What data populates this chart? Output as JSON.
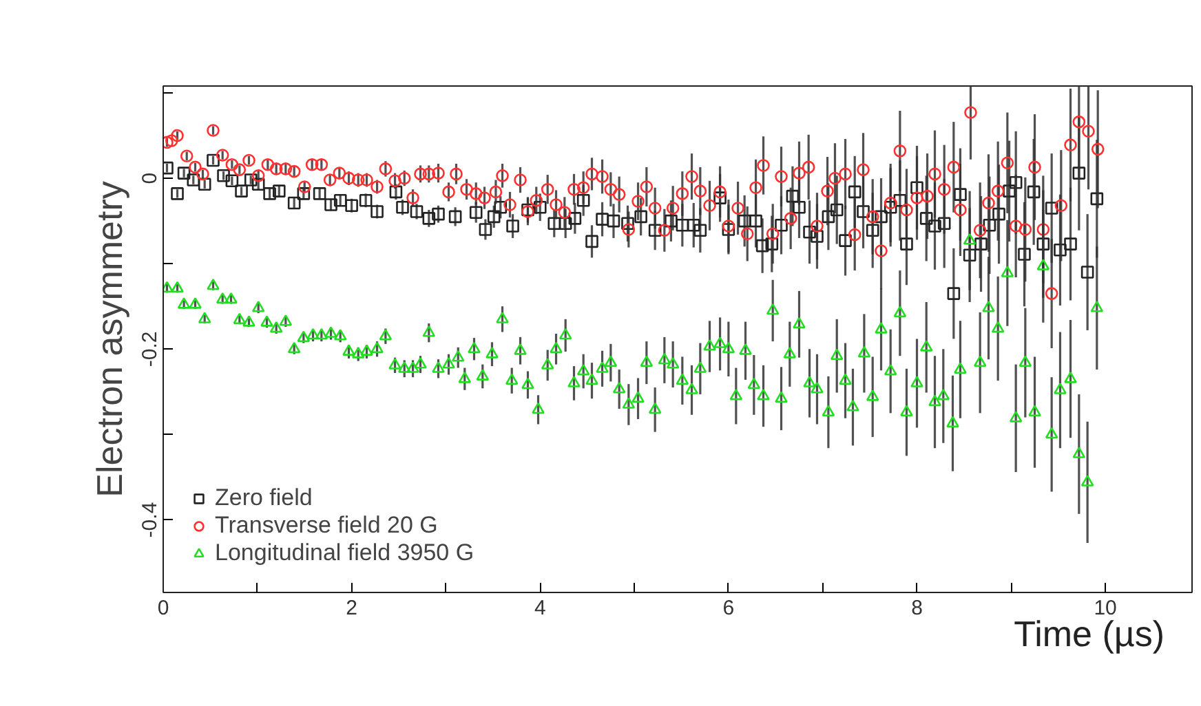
{
  "chart_data": {
    "type": "scatter",
    "xlabel": "Time (µs)",
    "ylabel": "Electron asymmetry",
    "xlim": [
      0,
      10.92
    ],
    "ylim": [
      -0.485,
      0.108
    ],
    "xticks": [
      0,
      {
        "value": 1,
        "label": null
      },
      2,
      {
        "value": 3,
        "label": null
      },
      4,
      {
        "value": 5,
        "label": null
      },
      6,
      {
        "value": 7,
        "label": null
      },
      8,
      {
        "value": 9,
        "label": null
      },
      10
    ],
    "yticks": [
      -0.4,
      {
        "value": -0.3,
        "label": null
      },
      -0.2,
      {
        "value": -0.1,
        "label": null
      },
      0,
      {
        "value": 0.1,
        "label": null
      }
    ],
    "grid": false,
    "legend": "bottom left",
    "series": [
      {
        "name": "Zero field",
        "color": "#222222",
        "marker": "square",
        "x": [
          0.04,
          0.15,
          0.22,
          0.32,
          0.44,
          0.53,
          0.64,
          0.73,
          0.83,
          0.93,
          1.01,
          1.13,
          1.23,
          1.39,
          1.49,
          1.66,
          1.78,
          1.88,
          2.0,
          2.15,
          2.27,
          2.47,
          2.54,
          2.69,
          2.82,
          2.92,
          3.1,
          3.32,
          3.42,
          3.51,
          3.58,
          3.71,
          3.87,
          4.0,
          4.15,
          4.27,
          4.37,
          4.46,
          4.55,
          4.66,
          4.78,
          4.93,
          5.07,
          5.22,
          5.39,
          5.51,
          5.63,
          5.7,
          5.91,
          6.0,
          6.17,
          6.29,
          6.36,
          6.46,
          6.56,
          6.68,
          6.75,
          6.86,
          6.94,
          7.06,
          7.15,
          7.24,
          7.34,
          7.43,
          7.53,
          7.62,
          7.72,
          7.82,
          7.89,
          8.0,
          8.1,
          8.19,
          8.29,
          8.39,
          8.46,
          8.56,
          8.68,
          8.77,
          8.87,
          8.98,
          9.05,
          9.14,
          9.24,
          9.34,
          9.43,
          9.52,
          9.63,
          9.72,
          9.81,
          9.91
        ],
        "values": [
          0.012,
          -0.018,
          0.006,
          -0.002,
          -0.007,
          0.021,
          0.003,
          -0.003,
          -0.015,
          -0.002,
          -0.007,
          -0.018,
          -0.015,
          -0.029,
          -0.018,
          -0.018,
          -0.031,
          -0.026,
          -0.032,
          -0.026,
          -0.039,
          -0.016,
          -0.034,
          -0.039,
          -0.047,
          -0.042,
          -0.045,
          -0.04,
          -0.06,
          -0.045,
          -0.034,
          -0.056,
          -0.037,
          -0.034,
          -0.053,
          -0.053,
          -0.047,
          -0.026,
          -0.074,
          -0.048,
          -0.05,
          -0.053,
          -0.045,
          -0.061,
          -0.05,
          -0.055,
          -0.055,
          -0.061,
          -0.023,
          -0.06,
          -0.05,
          -0.05,
          -0.079,
          -0.077,
          -0.055,
          -0.021,
          -0.034,
          -0.063,
          -0.068,
          -0.045,
          -0.037,
          -0.073,
          -0.016,
          -0.039,
          -0.061,
          -0.045,
          -0.034,
          -0.026,
          -0.077,
          -0.011,
          -0.047,
          -0.056,
          -0.053,
          -0.135,
          -0.019,
          -0.09,
          -0.077,
          -0.055,
          -0.042,
          -0.015,
          -0.005,
          -0.089,
          -0.016,
          -0.077,
          -0.035,
          -0.084,
          -0.077,
          0.006,
          -0.11,
          -0.024
        ],
        "errors": [
          0.005,
          0.005,
          0.005,
          0.005,
          0.005,
          0.005,
          0.005,
          0.005,
          0.005,
          0.005,
          0.006,
          0.006,
          0.006,
          0.006,
          0.006,
          0.007,
          0.007,
          0.007,
          0.008,
          0.008,
          0.008,
          0.009,
          0.009,
          0.009,
          0.01,
          0.01,
          0.011,
          0.012,
          0.012,
          0.013,
          0.013,
          0.014,
          0.015,
          0.016,
          0.016,
          0.017,
          0.018,
          0.018,
          0.019,
          0.02,
          0.02,
          0.021,
          0.022,
          0.023,
          0.024,
          0.025,
          0.026,
          0.026,
          0.028,
          0.029,
          0.03,
          0.031,
          0.032,
          0.033,
          0.034,
          0.035,
          0.036,
          0.037,
          0.038,
          0.039,
          0.04,
          0.041,
          0.042,
          0.043,
          0.044,
          0.045,
          0.046,
          0.047,
          0.048,
          0.049,
          0.05,
          0.051,
          0.052,
          0.053,
          0.054,
          0.055,
          0.056,
          0.057,
          0.058,
          0.059,
          0.06,
          0.061,
          0.062,
          0.063,
          0.064,
          0.065,
          0.066,
          0.067,
          0.068,
          0.069
        ]
      },
      {
        "name": "Transverse field 20 G",
        "color": "#ff3030",
        "marker": "circle",
        "x": [
          0.04,
          0.09,
          0.15,
          0.25,
          0.34,
          0.42,
          0.53,
          0.63,
          0.73,
          0.81,
          0.91,
          1.01,
          1.11,
          1.2,
          1.3,
          1.39,
          1.5,
          1.58,
          1.68,
          1.77,
          1.87,
          1.97,
          2.07,
          2.16,
          2.27,
          2.36,
          2.46,
          2.56,
          2.65,
          2.73,
          2.82,
          2.92,
          3.03,
          3.11,
          3.22,
          3.32,
          3.41,
          3.53,
          3.6,
          3.68,
          3.79,
          3.87,
          3.96,
          4.08,
          4.17,
          4.26,
          4.36,
          4.46,
          4.55,
          4.66,
          4.75,
          4.84,
          4.94,
          5.04,
          5.13,
          5.22,
          5.32,
          5.41,
          5.51,
          5.61,
          5.7,
          5.8,
          5.91,
          6.0,
          6.1,
          6.2,
          6.29,
          6.37,
          6.47,
          6.56,
          6.66,
          6.75,
          6.85,
          6.94,
          7.05,
          7.13,
          7.24,
          7.34,
          7.43,
          7.53,
          7.62,
          7.72,
          7.82,
          7.89,
          8.0,
          8.11,
          8.19,
          8.29,
          8.39,
          8.46,
          8.57,
          8.67,
          8.76,
          8.86,
          8.96,
          9.05,
          9.15,
          9.25,
          9.34,
          9.43,
          9.53,
          9.63,
          9.72,
          9.82,
          9.92
        ],
        "values": [
          0.042,
          0.044,
          0.05,
          0.026,
          0.013,
          0.005,
          0.056,
          0.027,
          0.016,
          0.01,
          0.021,
          0.003,
          0.016,
          0.011,
          0.011,
          0.008,
          -0.01,
          0.016,
          0.016,
          -0.002,
          0.006,
          0.0,
          -0.002,
          -0.002,
          -0.01,
          0.011,
          -0.003,
          0.0,
          -0.023,
          0.005,
          0.005,
          0.006,
          -0.016,
          0.005,
          -0.013,
          -0.018,
          -0.023,
          -0.016,
          0.003,
          -0.031,
          -0.002,
          -0.039,
          -0.026,
          -0.013,
          -0.031,
          -0.04,
          -0.013,
          -0.011,
          0.005,
          0.002,
          -0.013,
          -0.019,
          -0.06,
          -0.027,
          -0.01,
          -0.035,
          -0.061,
          -0.035,
          -0.018,
          0.002,
          -0.015,
          -0.032,
          -0.016,
          -0.056,
          -0.035,
          -0.065,
          -0.011,
          0.015,
          -0.065,
          0.002,
          -0.047,
          0.006,
          0.013,
          -0.056,
          -0.015,
          0.0,
          0.005,
          -0.066,
          0.01,
          -0.045,
          -0.085,
          -0.029,
          0.032,
          -0.037,
          -0.023,
          -0.021,
          0.005,
          -0.013,
          0.013,
          -0.037,
          0.077,
          -0.061,
          -0.029,
          -0.015,
          0.018,
          -0.056,
          -0.06,
          0.013,
          -0.06,
          -0.135,
          -0.032,
          0.039,
          0.066,
          0.055,
          0.034
        ],
        "errors": [
          0.005,
          null,
          0.005,
          0.005,
          0.005,
          0.005,
          0.005,
          0.005,
          0.005,
          0.005,
          0.005,
          0.006,
          0.006,
          0.006,
          0.006,
          0.006,
          0.006,
          0.007,
          0.007,
          0.007,
          0.007,
          0.008,
          0.008,
          0.008,
          0.008,
          0.009,
          0.009,
          0.009,
          0.01,
          0.01,
          0.01,
          0.011,
          0.011,
          0.012,
          0.012,
          0.013,
          0.013,
          0.014,
          0.014,
          0.015,
          0.015,
          0.016,
          0.016,
          0.017,
          0.017,
          0.018,
          0.018,
          0.019,
          0.019,
          0.02,
          0.02,
          0.021,
          0.021,
          0.022,
          0.023,
          0.024,
          0.025,
          0.026,
          0.026,
          0.027,
          0.028,
          0.029,
          0.03,
          0.031,
          0.031,
          0.032,
          0.033,
          0.034,
          0.035,
          0.035,
          0.036,
          0.037,
          0.038,
          0.039,
          0.04,
          0.041,
          0.041,
          0.042,
          0.043,
          0.044,
          0.045,
          0.046,
          0.047,
          0.048,
          0.049,
          0.05,
          0.051,
          0.052,
          0.053,
          0.054,
          0.055,
          0.056,
          0.057,
          0.058,
          0.059,
          0.06,
          0.061,
          0.062,
          0.063,
          0.064,
          0.065,
          0.066,
          0.067,
          0.068,
          0.069
        ]
      },
      {
        "name": "Longitudinal field 3950 G",
        "color": "#22dd22",
        "marker": "triangle",
        "x": [
          0.04,
          0.15,
          0.22,
          0.34,
          0.44,
          0.53,
          0.63,
          0.72,
          0.81,
          0.91,
          1.01,
          1.1,
          1.2,
          1.3,
          1.39,
          1.49,
          1.59,
          1.68,
          1.78,
          1.88,
          1.97,
          2.07,
          2.16,
          2.27,
          2.36,
          2.46,
          2.56,
          2.65,
          2.73,
          2.82,
          2.92,
          3.03,
          3.13,
          3.2,
          3.3,
          3.39,
          3.49,
          3.6,
          3.7,
          3.79,
          3.87,
          3.98,
          4.08,
          4.17,
          4.27,
          4.36,
          4.46,
          4.55,
          4.66,
          4.75,
          4.84,
          4.94,
          5.04,
          5.13,
          5.22,
          5.32,
          5.41,
          5.51,
          5.61,
          5.7,
          5.8,
          5.91,
          6.0,
          6.08,
          6.18,
          6.27,
          6.37,
          6.47,
          6.56,
          6.65,
          6.75,
          6.86,
          6.94,
          7.06,
          7.15,
          7.24,
          7.32,
          7.44,
          7.53,
          7.62,
          7.72,
          7.82,
          7.89,
          8.0,
          8.1,
          8.19,
          8.28,
          8.38,
          8.46,
          8.56,
          8.67,
          8.76,
          8.86,
          8.96,
          9.05,
          9.15,
          9.25,
          9.34,
          9.43,
          9.52,
          9.63,
          9.72,
          9.81,
          9.91
        ],
        "values": [
          -0.129,
          -0.129,
          -0.148,
          -0.148,
          -0.165,
          -0.126,
          -0.142,
          -0.142,
          -0.166,
          -0.169,
          -0.152,
          -0.169,
          -0.176,
          -0.168,
          -0.2,
          -0.187,
          -0.184,
          -0.184,
          -0.182,
          -0.185,
          -0.203,
          -0.206,
          -0.203,
          -0.2,
          -0.185,
          -0.219,
          -0.223,
          -0.223,
          -0.218,
          -0.181,
          -0.223,
          -0.218,
          -0.21,
          -0.235,
          -0.2,
          -0.232,
          -0.206,
          -0.165,
          -0.237,
          -0.202,
          -0.242,
          -0.271,
          -0.219,
          -0.2,
          -0.184,
          -0.24,
          -0.226,
          -0.237,
          -0.223,
          -0.216,
          -0.247,
          -0.265,
          -0.258,
          -0.216,
          -0.271,
          -0.213,
          -0.218,
          -0.237,
          -0.248,
          -0.223,
          -0.197,
          -0.194,
          -0.2,
          -0.255,
          -0.202,
          -0.242,
          -0.255,
          -0.155,
          -0.258,
          -0.206,
          -0.171,
          -0.24,
          -0.247,
          -0.274,
          -0.208,
          -0.237,
          -0.268,
          -0.205,
          -0.256,
          -0.177,
          -0.226,
          -0.158,
          -0.274,
          -0.24,
          -0.198,
          -0.262,
          -0.255,
          -0.287,
          -0.224,
          -0.073,
          -0.216,
          -0.152,
          -0.176,
          -0.111,
          -0.281,
          -0.216,
          -0.274,
          -0.103,
          -0.3,
          -0.248,
          -0.235,
          -0.323,
          -0.356,
          -0.152
        ],
        "errors": [
          0.005,
          0.005,
          0.005,
          0.005,
          0.005,
          0.005,
          0.005,
          0.005,
          0.005,
          0.005,
          0.006,
          0.006,
          0.006,
          0.006,
          0.006,
          0.006,
          0.007,
          0.007,
          0.007,
          0.007,
          0.008,
          0.008,
          0.008,
          0.009,
          0.009,
          0.009,
          0.01,
          0.01,
          0.01,
          0.011,
          0.011,
          0.012,
          0.012,
          0.013,
          0.013,
          0.014,
          0.014,
          0.015,
          0.015,
          0.016,
          0.016,
          0.017,
          0.018,
          0.018,
          0.019,
          0.02,
          0.02,
          0.021,
          0.021,
          0.022,
          0.023,
          0.024,
          0.024,
          0.025,
          0.026,
          0.027,
          0.027,
          0.028,
          0.029,
          0.03,
          0.03,
          0.031,
          0.032,
          0.033,
          0.034,
          0.035,
          0.036,
          0.036,
          0.037,
          0.038,
          0.039,
          0.04,
          0.041,
          0.042,
          0.043,
          0.044,
          0.045,
          0.046,
          0.047,
          0.048,
          0.049,
          0.05,
          0.051,
          0.052,
          0.053,
          0.054,
          0.055,
          0.056,
          0.057,
          0.058,
          0.059,
          0.06,
          0.061,
          0.062,
          0.063,
          0.064,
          0.065,
          0.066,
          0.067,
          0.068,
          0.069,
          0.07,
          0.071,
          0.072
        ]
      }
    ]
  }
}
